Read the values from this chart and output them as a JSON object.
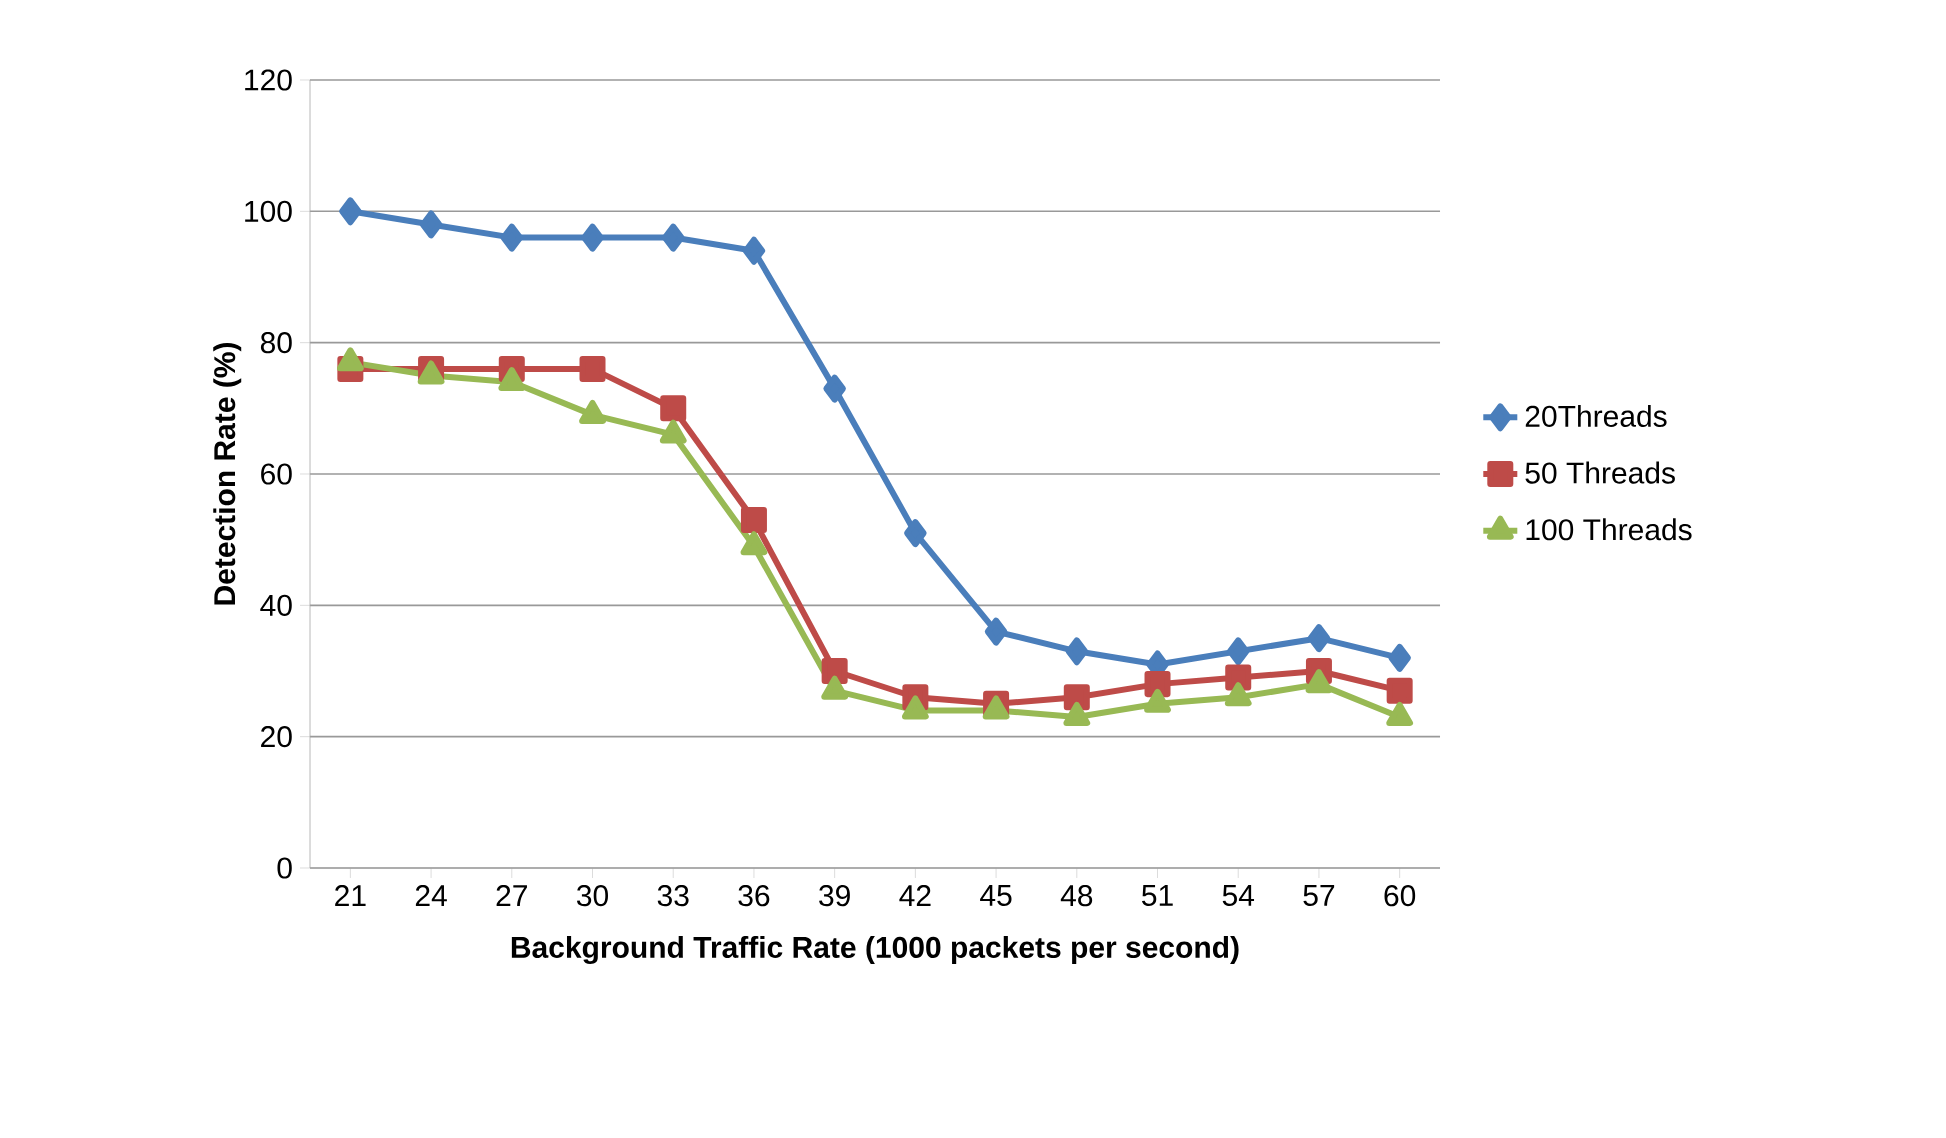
{
  "chart_data": {
    "type": "line",
    "xlabel": "Background Traffic Rate (1000 packets per second)",
    "ylabel": "Detection Rate (%)",
    "categories": [
      "21",
      "24",
      "27",
      "30",
      "33",
      "36",
      "39",
      "42",
      "45",
      "48",
      "51",
      "54",
      "57",
      "60"
    ],
    "ylim": [
      0,
      120
    ],
    "yticks": [
      0,
      20,
      40,
      60,
      80,
      100,
      120
    ],
    "grid": "y",
    "legend": "right",
    "series": [
      {
        "name": "20Threads",
        "color": "#4a7ebb",
        "marker": "diamond",
        "values": [
          100,
          98,
          96,
          96,
          96,
          94,
          73,
          51,
          36,
          33,
          31,
          33,
          35,
          32
        ]
      },
      {
        "name": "50 Threads",
        "color": "#be4b48",
        "marker": "square",
        "values": [
          76,
          76,
          76,
          76,
          70,
          53,
          30,
          26,
          25,
          26,
          28,
          29,
          30,
          27
        ]
      },
      {
        "name": "100 Threads",
        "color": "#98b954",
        "marker": "triangle",
        "values": [
          77,
          75,
          74,
          69,
          66,
          49,
          27,
          24,
          24,
          23,
          25,
          26,
          28,
          23
        ]
      }
    ]
  }
}
